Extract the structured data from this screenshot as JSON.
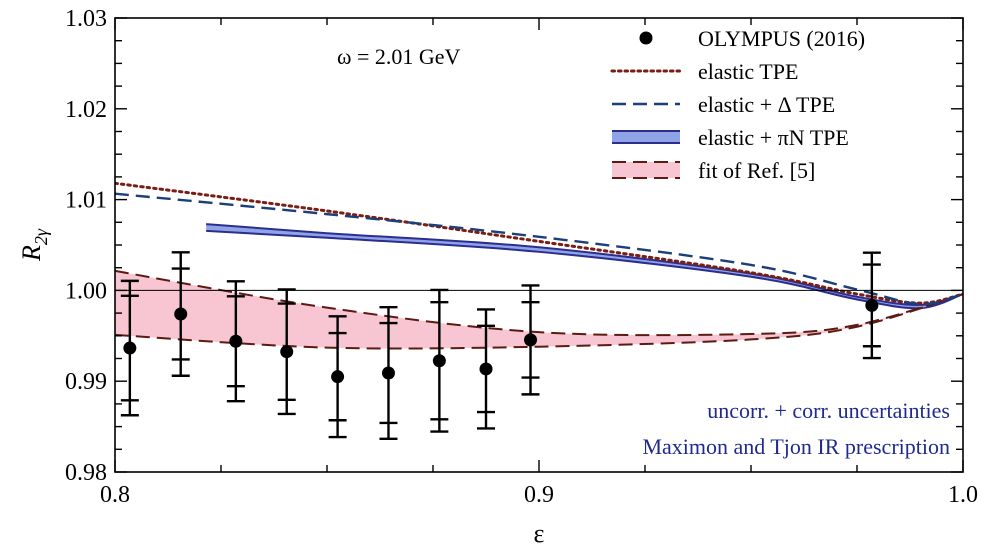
{
  "chart_data": {
    "type": "line",
    "xlabel": "ε",
    "ylabel": "R2γ",
    "xlim": [
      0.8,
      1.0
    ],
    "ylim": [
      0.98,
      1.03
    ],
    "xticks": [
      "0.8",
      "0.9",
      "1.0"
    ],
    "yticks": [
      "0.98",
      "0.99",
      "1.00",
      "1.01",
      "1.02",
      "1.03"
    ],
    "annotation": "ω = 2.01 GeV",
    "footnotes": [
      "uncorr. + corr. uncertainties",
      "Maximon and Tjon IR prescription"
    ],
    "legend_position": "top-right",
    "legend": [
      {
        "label": "OLYMPUS (2016)",
        "kind": "points"
      },
      {
        "label": "elastic TPE",
        "kind": "dotted"
      },
      {
        "label": "elastic + Δ TPE",
        "kind": "dashed"
      },
      {
        "label": "elastic + πN TPE",
        "kind": "band"
      },
      {
        "label": "fit of Ref. [5]",
        "kind": "band-dashed"
      }
    ],
    "series": [
      {
        "name": "OLYMPUS (2016)",
        "type": "scatter",
        "color": "#000000",
        "x": [
          0.8035,
          0.8155,
          0.8285,
          0.8405,
          0.8525,
          0.8645,
          0.8765,
          0.8875,
          0.898,
          0.9785
        ],
        "y": [
          0.99365,
          0.9974,
          0.9944,
          0.99325,
          0.9905,
          0.9909,
          0.99225,
          0.99135,
          0.99455,
          0.99835
        ],
        "err_in": [
          0.00575,
          0.005,
          0.00495,
          0.0053,
          0.0048,
          0.0055,
          0.00645,
          0.00475,
          0.00415,
          0.0045
        ],
        "err_out": [
          0.0074,
          0.0068,
          0.0066,
          0.00685,
          0.00665,
          0.00725,
          0.0078,
          0.00655,
          0.006,
          0.0058
        ]
      },
      {
        "name": "elastic TPE",
        "type": "line",
        "style": "dotted",
        "color": "#7a1e14",
        "x": [
          0.8,
          0.85,
          0.9,
          0.95,
          0.975,
          0.99,
          1.0
        ],
        "y": [
          1.0118,
          1.00875,
          1.0054,
          1.00195,
          0.9996,
          0.9986,
          0.9996
        ]
      },
      {
        "name": "elastic + Δ TPE",
        "type": "line",
        "style": "dashed",
        "color": "#1b3f7a",
        "x": [
          0.8,
          0.85,
          0.9,
          0.95,
          0.975,
          0.99,
          1.0
        ],
        "y": [
          1.01065,
          1.0084,
          1.0059,
          1.0028,
          1.0001,
          0.9985,
          0.9996
        ]
      },
      {
        "name": "elastic + πN TPE",
        "type": "band",
        "color": "#2b2d8f",
        "fill": "#8fa4e6",
        "x": [
          0.8215,
          0.85,
          0.9,
          0.95,
          0.975,
          0.99,
          1.0
        ],
        "upper": [
          1.0073,
          1.0063,
          1.00475,
          1.00185,
          0.9993,
          0.9984,
          0.9996
        ],
        "lower": [
          1.00655,
          1.0058,
          1.00425,
          1.0015,
          0.999,
          0.99805,
          0.9996
        ]
      },
      {
        "name": "fit of Ref. [5]",
        "type": "band",
        "color": "#5c1a12",
        "fill": "#f7c6d2",
        "x": [
          0.8,
          0.85,
          0.9,
          0.95,
          0.975,
          1.0
        ],
        "upper": [
          1.00215,
          0.9981,
          0.9954,
          0.9952,
          0.9962,
          0.9996
        ],
        "lower": [
          0.9951,
          0.9937,
          0.9938,
          0.9946,
          0.996,
          0.9996
        ]
      }
    ]
  }
}
